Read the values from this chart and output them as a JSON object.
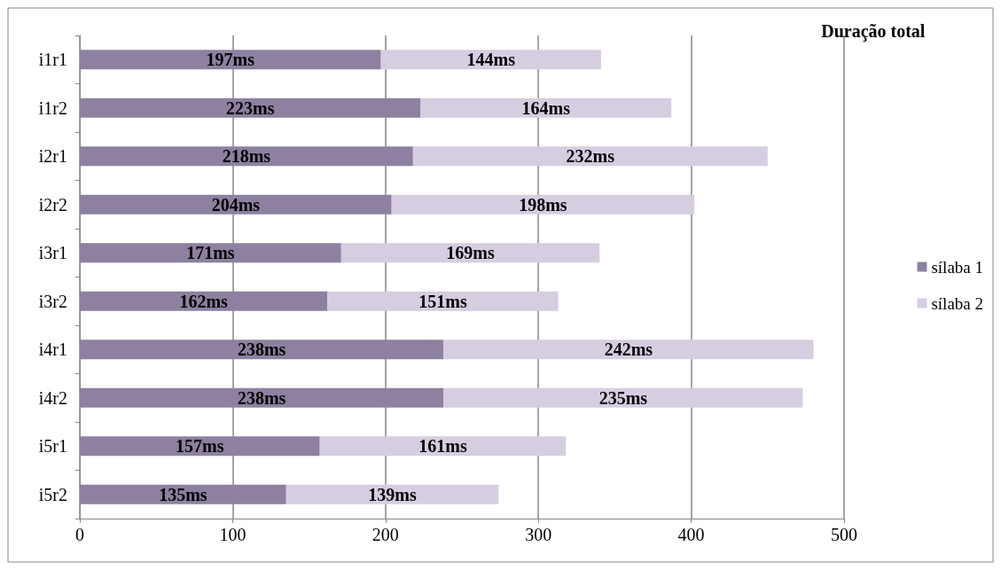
{
  "chart_data": {
    "type": "bar",
    "orientation": "horizontal",
    "stacked": true,
    "legend_title": "Duração total",
    "categories": [
      "i1r1",
      "i1r2",
      "i2r1",
      "i2r2",
      "i3r1",
      "i3r2",
      "i4r1",
      "i4r2",
      "i5r1",
      "i5r2"
    ],
    "series": [
      {
        "name": "sílaba 1",
        "color": "#8e80a0",
        "values": [
          197,
          223,
          218,
          204,
          171,
          162,
          238,
          238,
          157,
          135
        ],
        "value_labels": [
          "197ms",
          "223ms",
          "218ms",
          "204ms",
          "171ms",
          "162ms",
          "238ms",
          "238ms",
          "157ms",
          "135ms"
        ]
      },
      {
        "name": "sílaba 2",
        "color": "#d6cde1",
        "values": [
          144,
          164,
          232,
          198,
          169,
          151,
          242,
          235,
          161,
          139
        ],
        "value_labels": [
          "144ms",
          "164ms",
          "232ms",
          "198ms",
          "169ms",
          "151ms",
          "242ms",
          "235ms",
          "161ms",
          "139ms"
        ]
      }
    ],
    "xlim": [
      0,
      500
    ],
    "xticks": [
      0,
      100,
      200,
      300,
      400,
      500
    ],
    "grid": "x",
    "legend": "right"
  }
}
